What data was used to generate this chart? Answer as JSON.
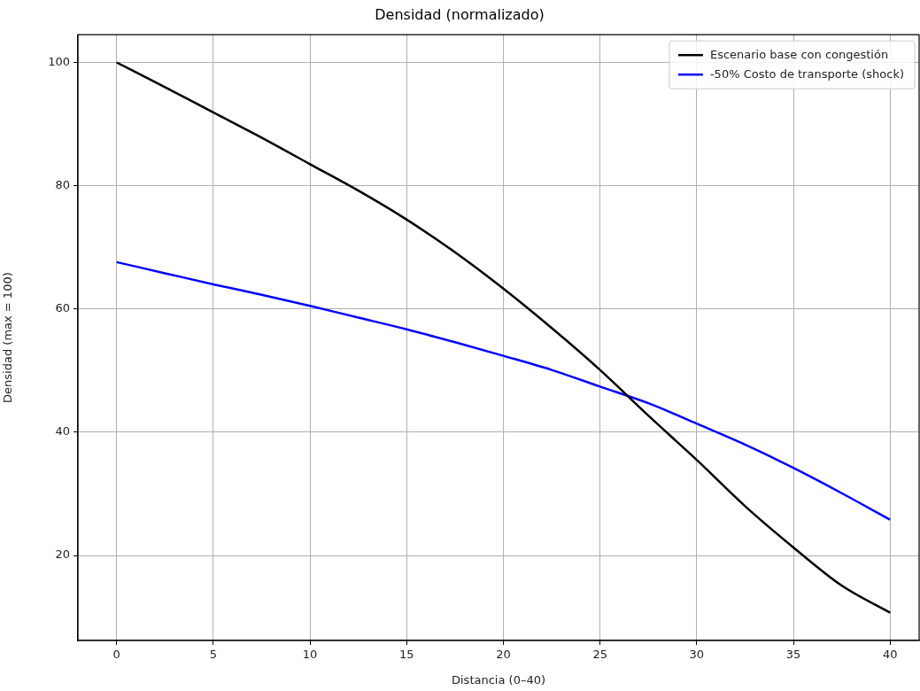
{
  "chart_data": {
    "type": "line",
    "title": "Densidad (normalizado)",
    "xlabel": "Distancia (0–40)",
    "ylabel": "Densidad (max = 100)",
    "x": [
      0,
      2.5,
      5,
      7.5,
      10,
      12.5,
      15,
      17.5,
      20,
      22.5,
      25,
      27.5,
      30,
      32.5,
      35,
      37.5,
      40
    ],
    "series": [
      {
        "name": "Escenario base con congestión",
        "color": "#000000",
        "values": [
          100,
          96,
          91.9,
          87.8,
          83.5,
          79.2,
          74.5,
          69.2,
          63.3,
          56.9,
          50.1,
          42.7,
          35.5,
          28,
          21.3,
          15.1,
          10.7
        ]
      },
      {
        "name": "-50% Costo de transporte (shock)",
        "color": "#0000ff",
        "values": [
          67.6,
          65.8,
          64,
          62.3,
          60.5,
          58.6,
          56.7,
          54.6,
          52.4,
          50.1,
          47.4,
          44.7,
          41.4,
          38,
          34.2,
          30.1,
          25.8
        ]
      }
    ],
    "xlim": [
      -2,
      41.5
    ],
    "xticks": [
      0,
      5,
      10,
      15,
      20,
      25,
      30,
      35,
      40
    ],
    "ylim": [
      6.2,
      104.5
    ],
    "yticks": [
      20,
      40,
      60,
      80,
      100
    ],
    "grid": true,
    "legend": "top right",
    "marker": "none",
    "line_style": "solid"
  }
}
